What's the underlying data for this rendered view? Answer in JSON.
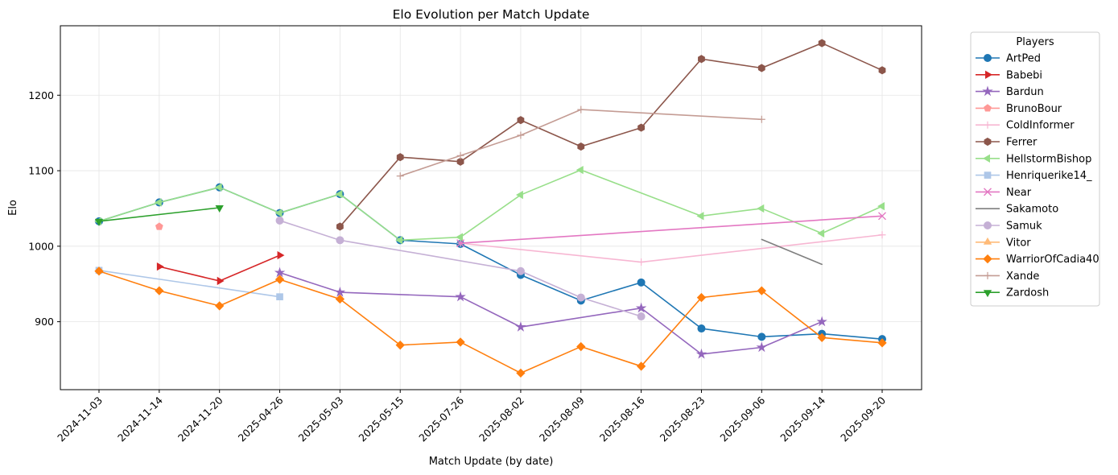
{
  "chart_data": {
    "type": "line",
    "title": "Elo Evolution per Match Update",
    "xlabel": "Match Update (by date)",
    "ylabel": "Elo",
    "legend_title": "Players",
    "legend": "outside-upper-right",
    "grid": true,
    "categories": [
      "2024-11-03",
      "2024-11-14",
      "2024-11-20",
      "2025-04-26",
      "2025-05-03",
      "2025-05-15",
      "2025-07-26",
      "2025-08-02",
      "2025-08-09",
      "2025-08-16",
      "2025-08-23",
      "2025-09-06",
      "2025-09-14",
      "2025-09-20"
    ],
    "ylim": [
      810,
      1292
    ],
    "yticks": [
      900,
      1000,
      1100,
      1200
    ],
    "series": [
      {
        "name": "ArtPed",
        "color": "#1f77b4",
        "marker": "circle",
        "values": [
          1033,
          1058,
          1078,
          1044,
          1069,
          1008,
          1003,
          962,
          928,
          952,
          891,
          880,
          884,
          877
        ]
      },
      {
        "name": "Babebi",
        "color": "#d62728",
        "marker": "triangle-right",
        "values": [
          null,
          973,
          954,
          988,
          null,
          null,
          null,
          null,
          null,
          null,
          null,
          null,
          null,
          null
        ]
      },
      {
        "name": "Bardun",
        "color": "#9467bd",
        "marker": "star",
        "values": [
          null,
          null,
          null,
          965,
          939,
          null,
          933,
          893,
          null,
          918,
          857,
          866,
          900,
          null
        ]
      },
      {
        "name": "BrunoBour",
        "color": "#ff9896",
        "marker": "pentagon",
        "values": [
          null,
          1026,
          null,
          null,
          null,
          null,
          null,
          null,
          null,
          null,
          null,
          null,
          null,
          null
        ]
      },
      {
        "name": "ColdInformer",
        "color": "#f7b6d2",
        "marker": "plus",
        "values": [
          null,
          null,
          null,
          null,
          null,
          null,
          1004,
          null,
          null,
          979,
          null,
          null,
          null,
          1015
        ]
      },
      {
        "name": "Ferrer",
        "color": "#8c564b",
        "marker": "hexagon",
        "values": [
          null,
          null,
          null,
          null,
          1026,
          1118,
          1112,
          1167,
          1132,
          1157,
          1248,
          1236,
          1269,
          1233
        ]
      },
      {
        "name": "HellstormBishop",
        "color": "#98df8a",
        "marker": "triangle-left",
        "values": [
          1033,
          1058,
          1078,
          1044,
          1069,
          1008,
          1012,
          1068,
          1101,
          null,
          1040,
          1050,
          1017,
          1053
        ]
      },
      {
        "name": "Henriquerike14_",
        "color": "#aec7e8",
        "marker": "square",
        "values": [
          968,
          null,
          null,
          933,
          null,
          null,
          null,
          null,
          null,
          null,
          null,
          null,
          null,
          null
        ]
      },
      {
        "name": "Near",
        "color": "#e377c2",
        "marker": "x",
        "values": [
          null,
          null,
          null,
          null,
          null,
          null,
          1004,
          null,
          null,
          null,
          null,
          null,
          null,
          1040
        ]
      },
      {
        "name": "Sakamoto",
        "color": "#7f7f7f",
        "marker": "none",
        "values": [
          null,
          null,
          null,
          null,
          null,
          null,
          null,
          null,
          null,
          null,
          null,
          1009,
          976,
          null
        ]
      },
      {
        "name": "Samuk",
        "color": "#c5b0d5",
        "marker": "circle",
        "values": [
          null,
          null,
          null,
          1034,
          1008,
          null,
          null,
          967,
          932,
          907,
          null,
          null,
          null,
          null
        ]
      },
      {
        "name": "Vitor",
        "color": "#ffbb78",
        "marker": "triangle-up",
        "values": [
          null,
          null,
          null,
          null,
          null,
          null,
          null,
          null,
          null,
          null,
          null,
          null,
          null,
          null
        ]
      },
      {
        "name": "WarriorOfCadia40",
        "color": "#ff7f0e",
        "marker": "diamond",
        "values": [
          967,
          941,
          921,
          956,
          930,
          869,
          873,
          832,
          867,
          841,
          932,
          941,
          879,
          872
        ]
      },
      {
        "name": "Xande",
        "color": "#c49c94",
        "marker": "plus",
        "values": [
          null,
          null,
          null,
          null,
          null,
          1093,
          1120,
          1147,
          1181,
          null,
          null,
          1168,
          null,
          null
        ]
      },
      {
        "name": "Zardosh",
        "color": "#2ca02c",
        "marker": "triangle-down",
        "values": [
          1033,
          null,
          1051,
          null,
          null,
          null,
          null,
          null,
          null,
          null,
          null,
          null,
          null,
          null
        ]
      }
    ]
  }
}
